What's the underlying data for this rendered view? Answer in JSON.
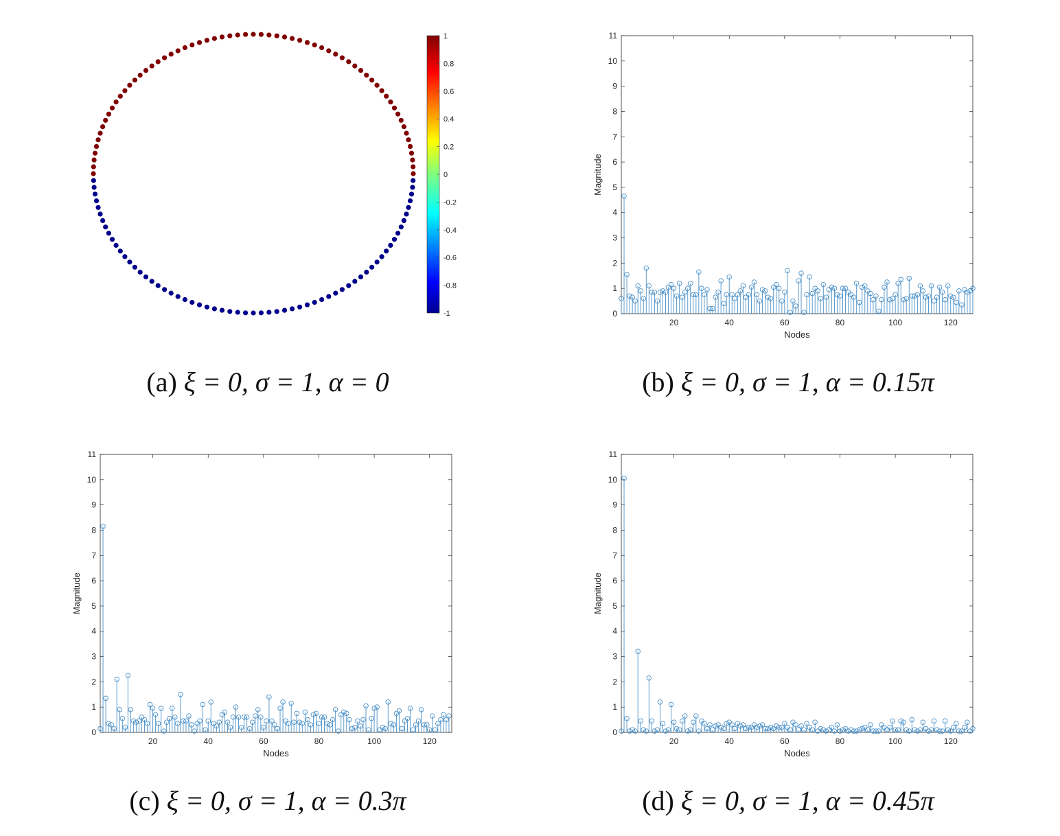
{
  "figure": {
    "captions": [
      {
        "label": "(a)",
        "text": "ξ = 0, σ = 1, α = 0"
      },
      {
        "label": "(b)",
        "text": "ξ = 0, σ = 1, α = 0.15π"
      },
      {
        "label": "(c)",
        "text": "ξ = 0, σ = 1, α = 0.3π"
      },
      {
        "label": "(d)",
        "text": "ξ = 0, σ = 1, α = 0.45π"
      }
    ]
  },
  "chart_data": [
    {
      "type": "scatter",
      "subtype": "graph-signal-on-ring",
      "nodes": 128,
      "signal": "sign of node position (upper half = 1, lower half = -1)",
      "colormap": "jet",
      "colors": {
        "high": "#800000",
        "low": "#00008b"
      },
      "colorbar": {
        "range": [
          -1,
          1
        ],
        "ticks": [
          "1",
          "0.8",
          "0.6",
          "0.4",
          "0.2",
          "0",
          "-0.2",
          "-0.4",
          "-0.6",
          "-0.8",
          "-1"
        ]
      }
    },
    {
      "type": "stem",
      "xlabel": "Nodes",
      "ylabel": "Magnitude",
      "xlim": [
        1,
        128
      ],
      "ylim": [
        0,
        11
      ],
      "xticks": [
        20,
        40,
        60,
        80,
        100,
        120
      ],
      "yticks": [
        0,
        1,
        2,
        3,
        4,
        5,
        6,
        7,
        8,
        9,
        10,
        11
      ],
      "color": "#4a90c8",
      "x_start": 1,
      "values": [
        0.6,
        4.65,
        1.55,
        0.7,
        0.65,
        0.5,
        1.1,
        0.9,
        0.6,
        1.8,
        1.1,
        0.85,
        0.85,
        0.5,
        0.85,
        0.9,
        0.85,
        1.05,
        1.15,
        1.0,
        0.7,
        1.2,
        0.65,
        0.85,
        1.0,
        1.2,
        0.75,
        0.75,
        1.65,
        1.0,
        0.75,
        0.95,
        0.2,
        0.2,
        0.65,
        0.85,
        1.3,
        0.4,
        0.75,
        1.45,
        0.75,
        0.6,
        0.75,
        0.9,
        1.1,
        0.65,
        0.75,
        1.05,
        1.25,
        0.75,
        0.5,
        0.95,
        0.9,
        0.65,
        0.6,
        1.05,
        1.15,
        1.0,
        0.5,
        0.85,
        1.7,
        0.05,
        0.5,
        0.3,
        1.3,
        1.6,
        0.05,
        0.75,
        1.45,
        0.8,
        1.0,
        0.9,
        0.6,
        1.15,
        0.65,
        0.95,
        1.05,
        1.0,
        0.75,
        0.7,
        1.0,
        1.0,
        0.85,
        0.75,
        0.65,
        1.2,
        0.45,
        1.05,
        1.1,
        0.9,
        0.8,
        0.55,
        0.7,
        0.1,
        0.55,
        1.05,
        1.25,
        0.55,
        0.6,
        0.75,
        1.2,
        1.35,
        0.55,
        0.6,
        1.4,
        0.7,
        0.7,
        0.75,
        1.1,
        0.9,
        0.65,
        0.7,
        1.1,
        0.5,
        0.65,
        1.05,
        0.85,
        0.55,
        1.1,
        0.7,
        0.65,
        0.45,
        0.9,
        0.35,
        0.95,
        0.85,
        0.9,
        1.0
      ]
    },
    {
      "type": "stem",
      "xlabel": "Nodes",
      "ylabel": "Magnitude",
      "xlim": [
        1,
        128
      ],
      "ylim": [
        0,
        11
      ],
      "xticks": [
        20,
        40,
        60,
        80,
        100,
        120
      ],
      "yticks": [
        0,
        1,
        2,
        3,
        4,
        5,
        6,
        7,
        8,
        9,
        10,
        11
      ],
      "color": "#4a90c8",
      "x_start": 1,
      "values": [
        0.15,
        8.15,
        1.35,
        0.35,
        0.3,
        0.15,
        2.1,
        0.9,
        0.55,
        0.2,
        2.25,
        0.9,
        0.45,
        0.4,
        0.45,
        0.6,
        0.5,
        0.35,
        1.1,
        0.95,
        0.7,
        0.35,
        0.95,
        0.05,
        0.4,
        0.55,
        0.95,
        0.6,
        0.35,
        1.5,
        0.45,
        0.45,
        0.65,
        0.3,
        0.05,
        0.35,
        0.45,
        1.1,
        0.1,
        0.45,
        1.2,
        0.35,
        0.25,
        0.4,
        0.7,
        0.8,
        0.4,
        0.2,
        0.6,
        1.0,
        0.6,
        0.2,
        0.6,
        0.6,
        0.15,
        0.4,
        0.65,
        0.9,
        0.6,
        0.2,
        0.45,
        1.4,
        0.45,
        0.3,
        0.15,
        0.95,
        1.2,
        0.45,
        0.35,
        1.15,
        0.4,
        0.75,
        0.4,
        0.35,
        0.8,
        0.5,
        0.3,
        0.7,
        0.75,
        0.35,
        0.6,
        0.6,
        0.35,
        0.3,
        0.5,
        0.9,
        0.05,
        0.7,
        0.8,
        0.75,
        0.5,
        0.15,
        0.2,
        0.45,
        0.25,
        0.5,
        1.05,
        0.1,
        0.55,
        0.95,
        1.0,
        0.1,
        0.2,
        0.15,
        1.2,
        0.35,
        0.3,
        0.75,
        0.85,
        0.15,
        0.45,
        0.55,
        0.95,
        0.1,
        0.3,
        0.45,
        0.9,
        0.3,
        0.3,
        0.1,
        0.65,
        0.1,
        0.35,
        0.5,
        0.7,
        0.5,
        0.65
      ]
    },
    {
      "type": "stem",
      "xlabel": "Nodes",
      "ylabel": "Magnitude",
      "xlim": [
        1,
        128
      ],
      "ylim": [
        0,
        11
      ],
      "xticks": [
        20,
        40,
        60,
        80,
        100,
        120
      ],
      "yticks": [
        0,
        1,
        2,
        3,
        4,
        5,
        6,
        7,
        8,
        9,
        10,
        11
      ],
      "color": "#4a90c8",
      "x_start": 1,
      "values": [
        0.05,
        10.05,
        0.55,
        0.05,
        0.1,
        0.05,
        3.2,
        0.45,
        0.1,
        0.05,
        2.15,
        0.45,
        0.05,
        0.1,
        1.2,
        0.35,
        0.05,
        0.1,
        1.1,
        0.4,
        0.15,
        0.1,
        0.45,
        0.65,
        0.05,
        0.1,
        0.4,
        0.65,
        0.05,
        0.45,
        0.35,
        0.15,
        0.3,
        0.1,
        0.25,
        0.3,
        0.2,
        0.15,
        0.35,
        0.4,
        0.3,
        0.15,
        0.35,
        0.25,
        0.3,
        0.15,
        0.2,
        0.2,
        0.3,
        0.2,
        0.25,
        0.3,
        0.15,
        0.15,
        0.2,
        0.15,
        0.25,
        0.2,
        0.2,
        0.35,
        0.2,
        0.1,
        0.4,
        0.3,
        0.1,
        0.25,
        0.1,
        0.35,
        0.2,
        0.1,
        0.4,
        0.05,
        0.15,
        0.1,
        0.05,
        0.1,
        0.2,
        0.05,
        0.3,
        0.05,
        0.1,
        0.15,
        0.05,
        0.1,
        0.05,
        0.05,
        0.1,
        0.15,
        0.2,
        0.1,
        0.3,
        0.05,
        0.05,
        0.05,
        0.3,
        0.2,
        0.1,
        0.2,
        0.45,
        0.1,
        0.1,
        0.45,
        0.4,
        0.1,
        0.05,
        0.5,
        0.1,
        0.05,
        0.1,
        0.4,
        0.15,
        0.05,
        0.1,
        0.45,
        0.1,
        0.05,
        0.05,
        0.45,
        0.1,
        0.05,
        0.2,
        0.35,
        0.05,
        0.05,
        0.2,
        0.4,
        0.05,
        0.15
      ]
    }
  ]
}
